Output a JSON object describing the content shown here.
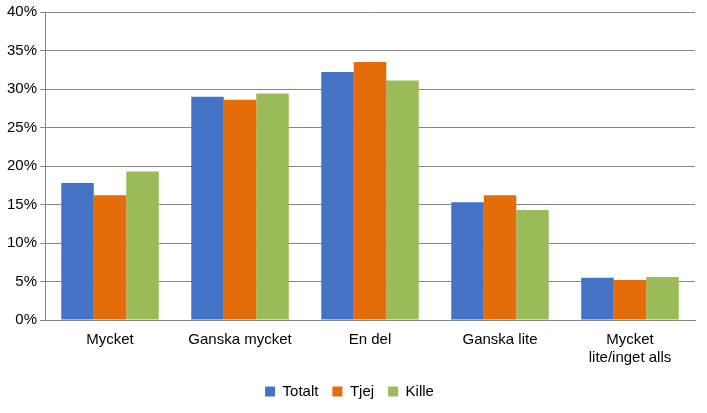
{
  "chart_data": {
    "type": "bar",
    "categories": [
      "Mycket",
      "Ganska mycket",
      "En del",
      "Ganska lite",
      "Mycket lite/inget alls"
    ],
    "series": [
      {
        "name": "Totalt",
        "color": "#4472c4",
        "values": [
          17.8,
          29.0,
          32.2,
          15.3,
          5.5
        ]
      },
      {
        "name": "Tjej",
        "color": "#e46c0a",
        "values": [
          16.2,
          28.6,
          33.5,
          16.2,
          5.2
        ]
      },
      {
        "name": "Kille",
        "color": "#9bbb59",
        "values": [
          19.3,
          29.4,
          31.1,
          14.3,
          5.6
        ]
      }
    ],
    "ylim": [
      0,
      40
    ],
    "yticks": [
      {
        "value": 0,
        "label": "0%"
      },
      {
        "value": 5,
        "label": "5%"
      },
      {
        "value": 10,
        "label": "10%"
      },
      {
        "value": 15,
        "label": "15%"
      },
      {
        "value": 20,
        "label": "20%"
      },
      {
        "value": 25,
        "label": "25%"
      },
      {
        "value": 30,
        "label": "30%"
      },
      {
        "value": 35,
        "label": "35%"
      },
      {
        "value": 40,
        "label": "40%"
      }
    ],
    "grid": true,
    "legend": "bottom"
  }
}
